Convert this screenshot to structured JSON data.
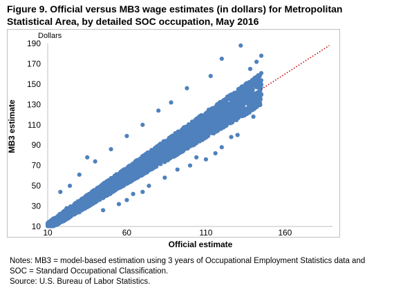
{
  "figure": {
    "title": "Figure 9. Official versus MB3 wage estimates (in dollars) for Metropolitan Statistical Area, by detailed SOC occupation, May 2016",
    "notes": "Notes: MB3 = model-based estimation using 3 years of Occupational Employment Statistics data and SOC = Standard Occupational Classification.",
    "source": "Source: U.S. Bureau of Labor Statistics."
  },
  "chart_data": {
    "type": "scatter",
    "xlabel": "Official estimate",
    "ylabel": "MB3 estimate",
    "y_unit": "Dollars",
    "xlim": [
      10,
      190
    ],
    "ylim": [
      10,
      190
    ],
    "x_ticks": [
      "10",
      "60",
      "110",
      "160"
    ],
    "y_ticks": [
      "10",
      "30",
      "50",
      "70",
      "90",
      "110",
      "130",
      "150",
      "170",
      "190"
    ],
    "point_color": "#4f81bd",
    "trend_color": "#c00000",
    "trend_line": {
      "style": "dotted",
      "from": [
        145,
        145
      ],
      "to": [
        188,
        188
      ]
    },
    "x_data_max": 145,
    "series": [
      {
        "points": [
          [
            12,
            14
          ],
          [
            15,
            13
          ],
          [
            18,
            22
          ],
          [
            20,
            17
          ],
          [
            22,
            28
          ],
          [
            25,
            21
          ],
          [
            28,
            33
          ],
          [
            30,
            24
          ],
          [
            33,
            38
          ],
          [
            35,
            29
          ],
          [
            38,
            44
          ],
          [
            40,
            34
          ],
          [
            43,
            49
          ],
          [
            45,
            38
          ],
          [
            48,
            55
          ],
          [
            50,
            43
          ],
          [
            53,
            60
          ],
          [
            55,
            48
          ],
          [
            58,
            65
          ],
          [
            60,
            52
          ],
          [
            63,
            70
          ],
          [
            65,
            58
          ],
          [
            68,
            76
          ],
          [
            70,
            62
          ],
          [
            73,
            80
          ],
          [
            75,
            67
          ],
          [
            78,
            86
          ],
          [
            80,
            72
          ],
          [
            83,
            91
          ],
          [
            85,
            76
          ],
          [
            88,
            96
          ],
          [
            90,
            81
          ],
          [
            93,
            102
          ],
          [
            95,
            86
          ],
          [
            98,
            107
          ],
          [
            100,
            91
          ],
          [
            103,
            112
          ],
          [
            105,
            95
          ],
          [
            108,
            117
          ],
          [
            110,
            100
          ],
          [
            113,
            122
          ],
          [
            115,
            105
          ],
          [
            118,
            127
          ],
          [
            120,
            110
          ],
          [
            123,
            132
          ],
          [
            125,
            115
          ],
          [
            128,
            137
          ],
          [
            130,
            120
          ],
          [
            133,
            143
          ],
          [
            135,
            124
          ],
          [
            138,
            147
          ],
          [
            140,
            130
          ],
          [
            143,
            153
          ],
          [
            145,
            140
          ],
          [
            132,
            188
          ],
          [
            120,
            175
          ],
          [
            113,
            158
          ],
          [
            98,
            146
          ],
          [
            88,
            132
          ],
          [
            80,
            124
          ],
          [
            70,
            110
          ],
          [
            60,
            99
          ],
          [
            50,
            86
          ],
          [
            40,
            74
          ],
          [
            30,
            61
          ],
          [
            92,
            66
          ],
          [
            100,
            70
          ],
          [
            110,
            76
          ],
          [
            120,
            88
          ],
          [
            130,
            100
          ],
          [
            70,
            44
          ],
          [
            60,
            36
          ],
          [
            55,
            32
          ],
          [
            45,
            26
          ],
          [
            24,
            50
          ],
          [
            18,
            44
          ],
          [
            35,
            78
          ],
          [
            142,
            172
          ],
          [
            145,
            178
          ],
          [
            144,
            158
          ],
          [
            138,
            165
          ],
          [
            140,
            118
          ],
          [
            126,
            98
          ],
          [
            116,
            82
          ],
          [
            104,
            78
          ],
          [
            84,
            58
          ],
          [
            74,
            50
          ],
          [
            64,
            42
          ]
        ]
      }
    ]
  }
}
